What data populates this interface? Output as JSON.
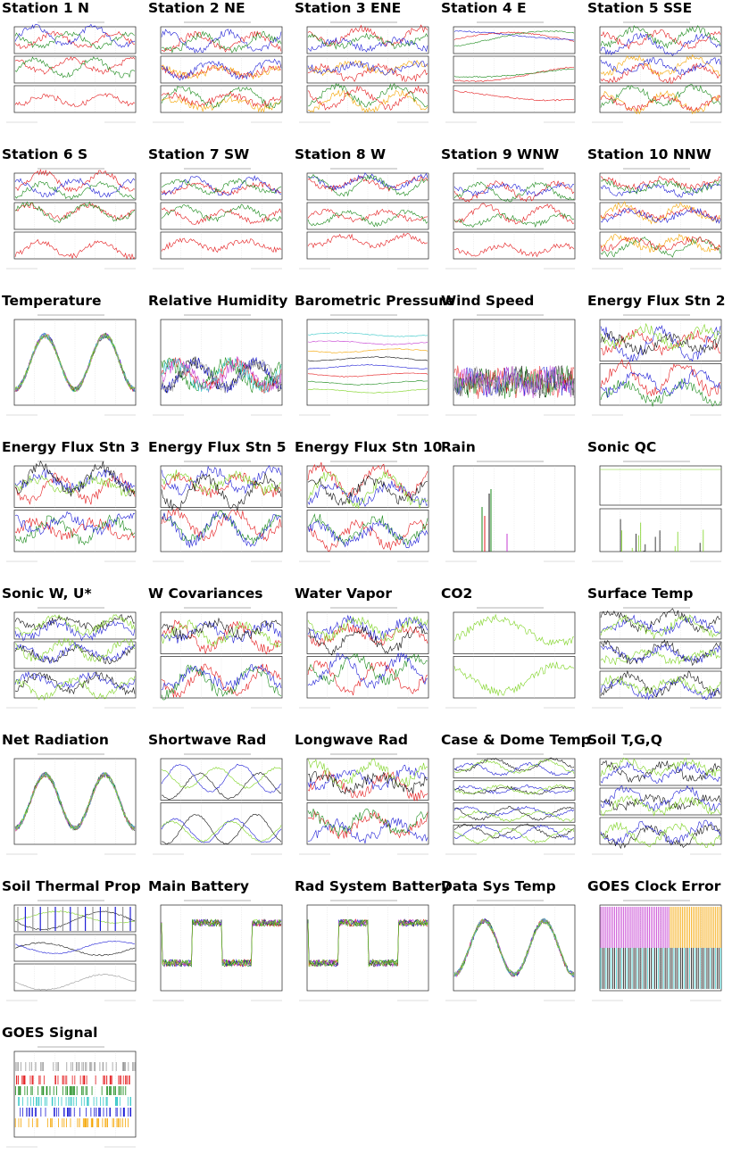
{
  "colors": {
    "red": "#e41a1c",
    "blue": "#1f1fd6",
    "green": "#1a8a1a",
    "orange": "#f5a500",
    "lime": "#7dd321",
    "magenta": "#c43bd1",
    "cyan": "#38c8c8",
    "black": "#111111",
    "gray": "#9a9a9a"
  },
  "tiles": [
    {
      "id": "station-1-n",
      "title": "Station 1 N",
      "kind": "station3"
    },
    {
      "id": "station-2-ne",
      "title": "Station 2 NE",
      "kind": "station3b"
    },
    {
      "id": "station-3-ene",
      "title": "Station 3 ENE",
      "kind": "station3b"
    },
    {
      "id": "station-4-e",
      "title": "Station 4 E",
      "kind": "station3c"
    },
    {
      "id": "station-5-sse",
      "title": "Station 5 SSE",
      "kind": "station3b"
    },
    {
      "id": "station-6-s",
      "title": "Station 6 S",
      "kind": "station3"
    },
    {
      "id": "station-7-sw",
      "title": "Station 7 SW",
      "kind": "station3"
    },
    {
      "id": "station-8-w",
      "title": "Station 8 W",
      "kind": "station3"
    },
    {
      "id": "station-9-wnw",
      "title": "Station 9 WNW",
      "kind": "station3"
    },
    {
      "id": "station-10-nnw",
      "title": "Station 10 NNW",
      "kind": "station3b"
    },
    {
      "id": "temperature",
      "title": "Temperature",
      "kind": "multi-diurnal"
    },
    {
      "id": "relative-humidity",
      "title": "Relative Humidity",
      "kind": "multi-noisy"
    },
    {
      "id": "barometric-pressure",
      "title": "Barometric Pressure",
      "kind": "flatlines"
    },
    {
      "id": "wind-speed",
      "title": "Wind Speed",
      "kind": "spiky"
    },
    {
      "id": "energy-flux-stn-2",
      "title": "Energy Flux Stn 2",
      "kind": "two-panel"
    },
    {
      "id": "energy-flux-stn-3",
      "title": "Energy Flux Stn 3",
      "kind": "two-panel"
    },
    {
      "id": "energy-flux-stn-5",
      "title": "Energy Flux Stn 5",
      "kind": "two-panel"
    },
    {
      "id": "energy-flux-stn-10",
      "title": "Energy Flux Stn 10",
      "kind": "two-panel"
    },
    {
      "id": "rain",
      "title": "Rain",
      "kind": "rain"
    },
    {
      "id": "sonic-qc",
      "title": "Sonic QC",
      "kind": "sonicqc"
    },
    {
      "id": "sonic-w-u",
      "title": "Sonic W, U*",
      "kind": "three-panel"
    },
    {
      "id": "w-covariances",
      "title": "W Covariances",
      "kind": "two-panel"
    },
    {
      "id": "water-vapor",
      "title": "Water Vapor",
      "kind": "two-panel"
    },
    {
      "id": "co2",
      "title": "CO2",
      "kind": "co2"
    },
    {
      "id": "surface-temp",
      "title": "Surface Temp",
      "kind": "three-panel"
    },
    {
      "id": "net-radiation",
      "title": "Net Radiation",
      "kind": "multi-diurnal"
    },
    {
      "id": "shortwave-rad",
      "title": "Shortwave Rad",
      "kind": "two-panel-sw"
    },
    {
      "id": "longwave-rad",
      "title": "Longwave Rad",
      "kind": "two-panel"
    },
    {
      "id": "case-dome-temp",
      "title": "Case & Dome Temp",
      "kind": "four-panel"
    },
    {
      "id": "soil-tgq",
      "title": "Soil T,G,Q",
      "kind": "three-panel"
    },
    {
      "id": "soil-thermal-prop",
      "title": "Soil Thermal Prop",
      "kind": "soilthermal"
    },
    {
      "id": "main-battery",
      "title": "Main Battery",
      "kind": "battery"
    },
    {
      "id": "rad-system-battery",
      "title": "Rad System Battery",
      "kind": "battery"
    },
    {
      "id": "data-sys-temp",
      "title": "Data Sys Temp",
      "kind": "multi-diurnal"
    },
    {
      "id": "goes-clock-error",
      "title": "GOES Clock Error",
      "kind": "goesclock"
    },
    {
      "id": "goes-signal",
      "title": "GOES Signal",
      "kind": "goessignal"
    }
  ]
}
